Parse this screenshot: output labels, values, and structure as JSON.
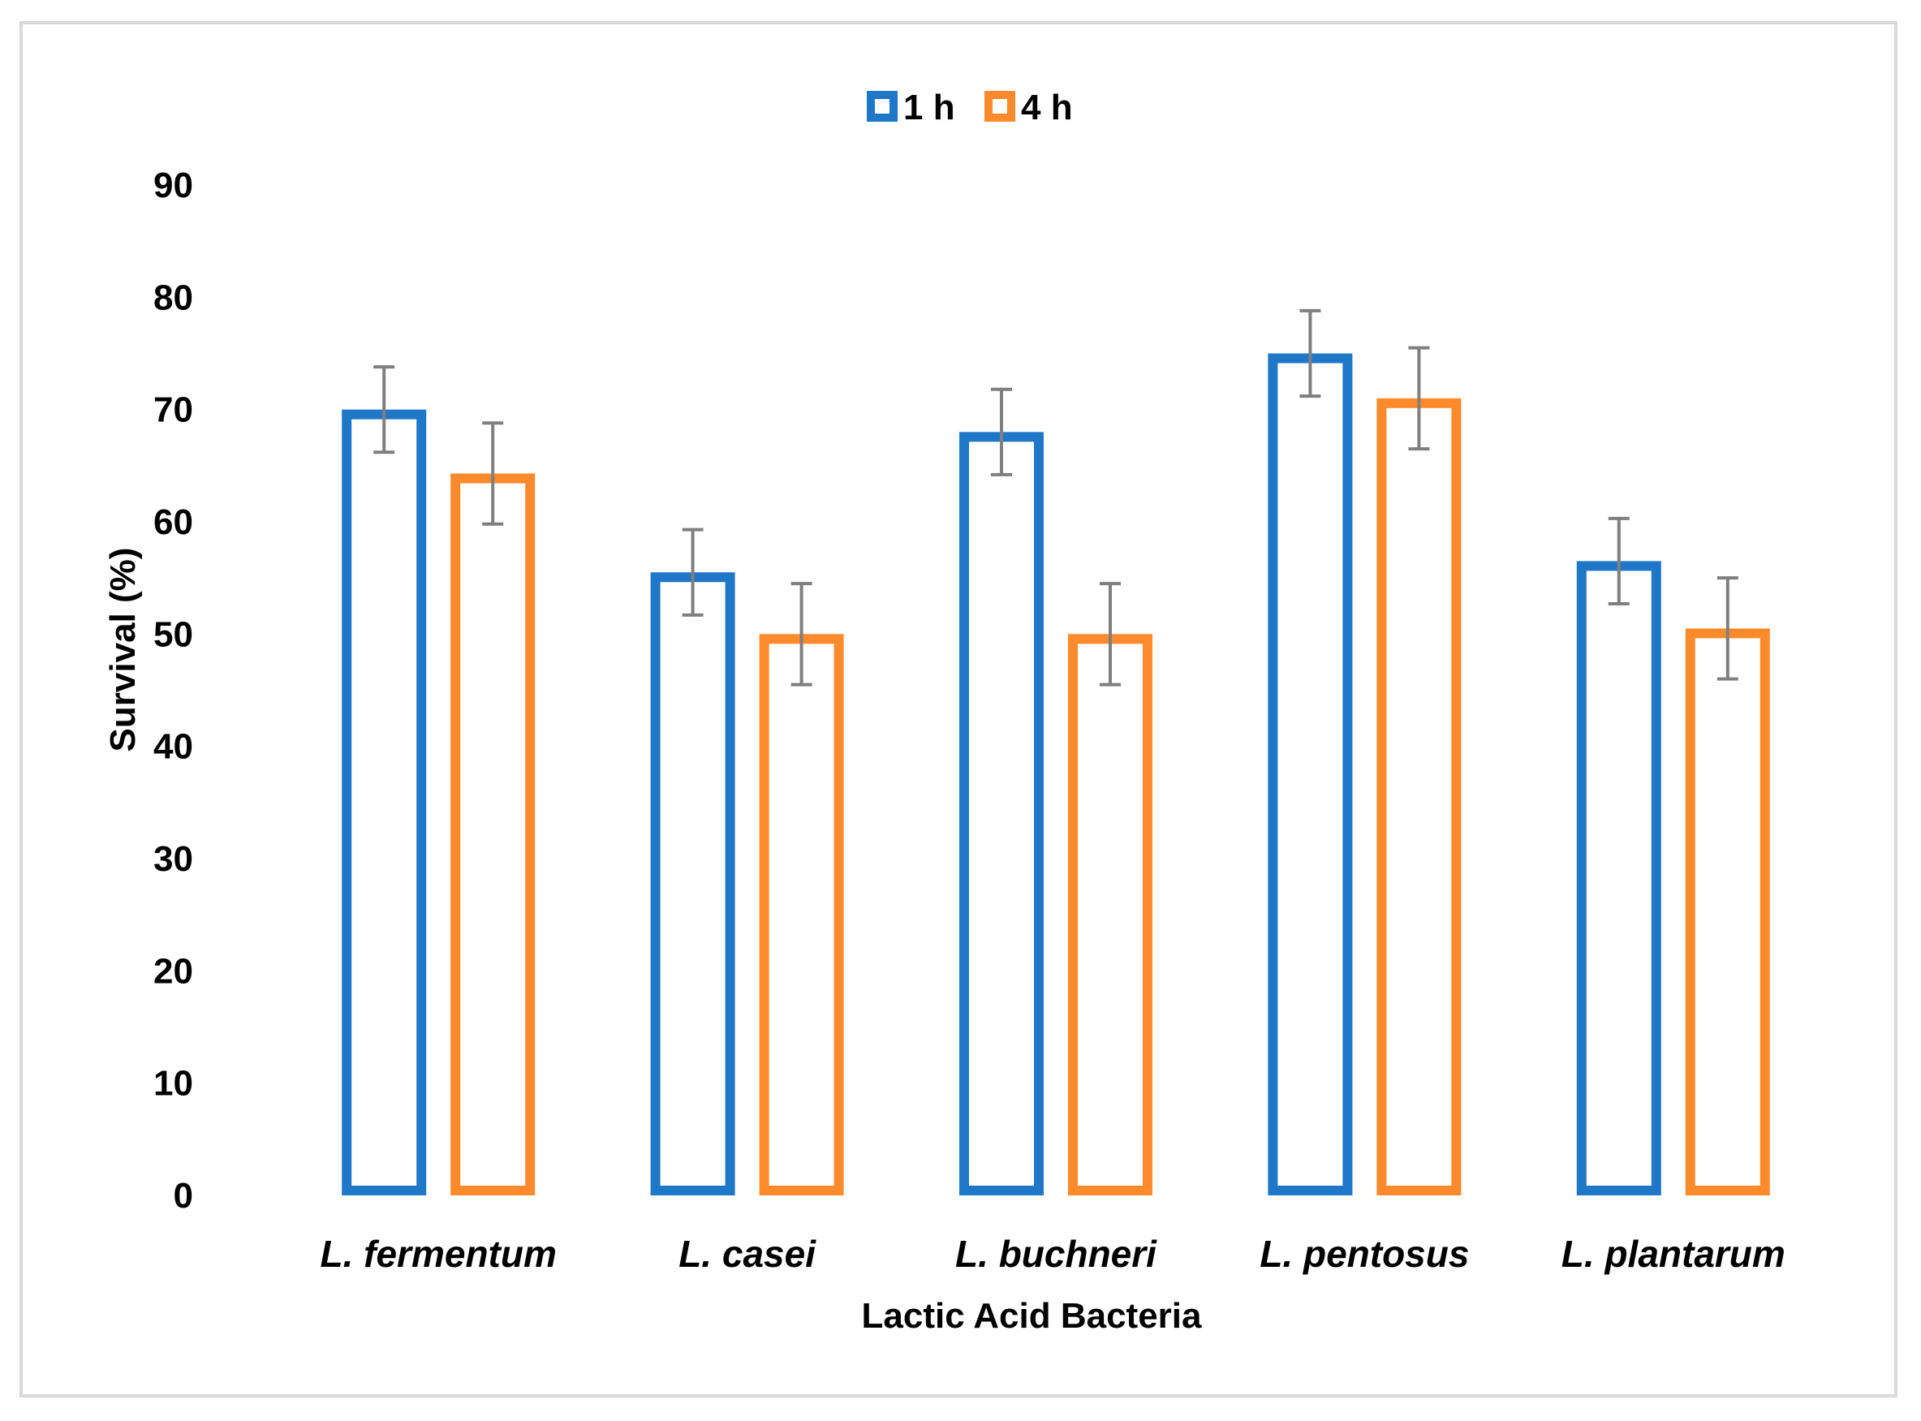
{
  "chart_data": {
    "type": "bar",
    "title": "",
    "xlabel": "Lactic Acid Bacteria",
    "ylabel": "Survival (%)",
    "ylim": [
      0,
      90
    ],
    "yticks": [
      0,
      10,
      20,
      30,
      40,
      50,
      60,
      70,
      80,
      90
    ],
    "grid": false,
    "legend_position": "top-center",
    "categories": [
      "L. fermentum",
      "L. casei",
      "L. buchneri",
      "L. pentosus",
      "L. plantarum"
    ],
    "series": [
      {
        "name": "1 h",
        "color": "#1f77c8",
        "values": [
          70,
          55.5,
          68,
          75,
          56.5
        ],
        "errors": [
          3.8,
          3.8,
          3.8,
          3.8,
          3.8
        ]
      },
      {
        "name": "4 h",
        "color": "#ff8a2b",
        "values": [
          64.3,
          50,
          50,
          71,
          50.5
        ],
        "errors": [
          4.5,
          4.5,
          4.5,
          4.5,
          4.5
        ]
      }
    ],
    "error_bar_color": "#7f7f7f"
  }
}
